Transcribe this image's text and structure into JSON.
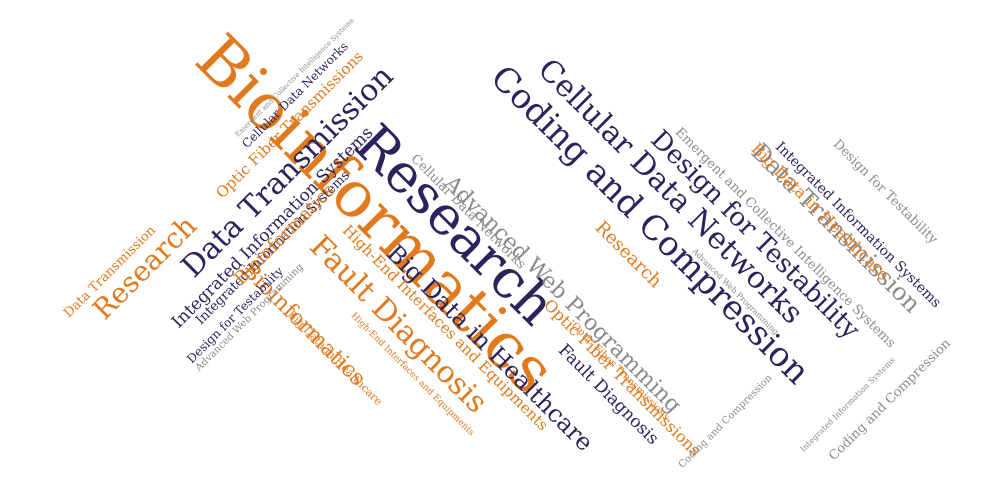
{
  "colors": {
    "navy": "#2b245c",
    "orange": "#e07a1d",
    "gray": "#8a8a8a",
    "background": "#ffffff"
  },
  "words": [
    {
      "text": "Bioinformatics",
      "color": "orange"
    },
    {
      "text": "Research",
      "color": "navy"
    },
    {
      "text": "Coding and Compression",
      "color": "navy"
    },
    {
      "text": "Cellular Data Networks",
      "color": "navy"
    },
    {
      "text": "Design for Testability",
      "color": "navy"
    },
    {
      "text": "Data Transmission",
      "color": "navy"
    },
    {
      "text": "Advanced Web Programming",
      "color": "gray"
    },
    {
      "text": "Big Data in Healthcare",
      "color": "navy"
    },
    {
      "text": "Fault Diagnosis",
      "color": "orange"
    },
    {
      "text": "Research",
      "color": "orange"
    },
    {
      "text": "Data Transmission",
      "color": "gray"
    },
    {
      "text": "Bioinformatics",
      "color": "orange"
    },
    {
      "text": "Integrated Information Systems",
      "color": "navy"
    },
    {
      "text": "High-End Interfaces and Equipments",
      "color": "orange"
    },
    {
      "text": "Big Data in Healthcare",
      "color": "orange"
    },
    {
      "text": "Research",
      "color": "orange"
    },
    {
      "text": "Optic Fiber Transmissions",
      "color": "orange"
    },
    {
      "text": "Fault Diagnosis",
      "color": "navy"
    },
    {
      "text": "Emergent and Collective Intelligence Systems",
      "color": "gray"
    },
    {
      "text": "Integrated Information Systems",
      "color": "navy"
    },
    {
      "text": "Design for Testability",
      "color": "gray"
    },
    {
      "text": "Cellular Data Networks",
      "color": "gray"
    },
    {
      "text": "Data Transmission",
      "color": "orange"
    },
    {
      "text": "Integrated Information Systems",
      "color": "navy"
    },
    {
      "text": "Optic Fiber Transmissions",
      "color": "orange"
    },
    {
      "text": "Cellular Data Networks",
      "color": "navy"
    },
    {
      "text": "Emergent and Collective Intelligence Systems",
      "color": "gray"
    },
    {
      "text": "Bioinformatics",
      "color": "orange"
    },
    {
      "text": "Design for Testability",
      "color": "navy"
    },
    {
      "text": "Advanced Web Programming",
      "color": "gray"
    },
    {
      "text": "Big Data in Healthcare",
      "color": "orange"
    },
    {
      "text": "Optic Fiber Transmissions",
      "color": "orange"
    },
    {
      "text": "Advanced Web Programming",
      "color": "gray"
    },
    {
      "text": "High-End Interfaces and Equipments",
      "color": "orange"
    },
    {
      "text": "Coding and Compression",
      "color": "gray"
    },
    {
      "text": "Integrated Information Systems",
      "color": "gray"
    },
    {
      "text": "Coding and Compression",
      "color": "gray"
    },
    {
      "text": "Fault Diagnosis",
      "color": "navy"
    },
    {
      "text": "Big Data in Healthcare",
      "color": "orange"
    },
    {
      "text": "Data Transmission",
      "color": "orange"
    },
    {
      "text": "Design for Testability",
      "color": "gray"
    },
    {
      "text": "Coding and Compression",
      "color": "gray"
    }
  ]
}
